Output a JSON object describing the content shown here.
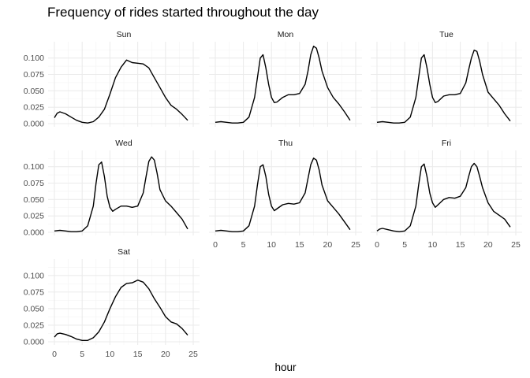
{
  "chart_data": {
    "type": "line",
    "title": "Frequency of rides started throughout the day",
    "xlabel": "hour",
    "ylabel": "",
    "xlim": [
      0,
      24
    ],
    "ylim": [
      0,
      0.12
    ],
    "x_ticks": [
      0,
      5,
      10,
      15,
      20,
      25
    ],
    "y_ticks": [
      "0.000",
      "0.025",
      "0.050",
      "0.075",
      "0.100"
    ],
    "grid": true,
    "facets": [
      {
        "name": "Sun",
        "points": [
          [
            0,
            0.009
          ],
          [
            0.5,
            0.016
          ],
          [
            1,
            0.018
          ],
          [
            2,
            0.015
          ],
          [
            3,
            0.01
          ],
          [
            4,
            0.005
          ],
          [
            5,
            0.002
          ],
          [
            6,
            0.001
          ],
          [
            7,
            0.003
          ],
          [
            8,
            0.01
          ],
          [
            9,
            0.022
          ],
          [
            10,
            0.045
          ],
          [
            11,
            0.07
          ],
          [
            12,
            0.086
          ],
          [
            13,
            0.097
          ],
          [
            14,
            0.093
          ],
          [
            15,
            0.092
          ],
          [
            16,
            0.091
          ],
          [
            17,
            0.085
          ],
          [
            18,
            0.07
          ],
          [
            19,
            0.055
          ],
          [
            20,
            0.04
          ],
          [
            21,
            0.028
          ],
          [
            22,
            0.022
          ],
          [
            23,
            0.014
          ],
          [
            24,
            0.005
          ]
        ]
      },
      {
        "name": "Mon",
        "points": [
          [
            0,
            0.002
          ],
          [
            1,
            0.003
          ],
          [
            2,
            0.002
          ],
          [
            3,
            0.001
          ],
          [
            4,
            0.001
          ],
          [
            5,
            0.002
          ],
          [
            6,
            0.01
          ],
          [
            7,
            0.04
          ],
          [
            7.5,
            0.07
          ],
          [
            8,
            0.1
          ],
          [
            8.5,
            0.105
          ],
          [
            9,
            0.085
          ],
          [
            9.5,
            0.06
          ],
          [
            10,
            0.04
          ],
          [
            10.5,
            0.032
          ],
          [
            11,
            0.033
          ],
          [
            12,
            0.04
          ],
          [
            13,
            0.044
          ],
          [
            14,
            0.044
          ],
          [
            15,
            0.046
          ],
          [
            16,
            0.06
          ],
          [
            16.5,
            0.08
          ],
          [
            17,
            0.105
          ],
          [
            17.5,
            0.118
          ],
          [
            18,
            0.115
          ],
          [
            18.5,
            0.1
          ],
          [
            19,
            0.08
          ],
          [
            20,
            0.055
          ],
          [
            21,
            0.04
          ],
          [
            22,
            0.03
          ],
          [
            23,
            0.018
          ],
          [
            24,
            0.005
          ]
        ]
      },
      {
        "name": "Tue",
        "points": [
          [
            0,
            0.002
          ],
          [
            1,
            0.003
          ],
          [
            2,
            0.002
          ],
          [
            3,
            0.001
          ],
          [
            4,
            0.001
          ],
          [
            5,
            0.002
          ],
          [
            6,
            0.01
          ],
          [
            7,
            0.04
          ],
          [
            7.5,
            0.07
          ],
          [
            8,
            0.1
          ],
          [
            8.5,
            0.105
          ],
          [
            9,
            0.085
          ],
          [
            9.5,
            0.06
          ],
          [
            10,
            0.04
          ],
          [
            10.5,
            0.032
          ],
          [
            11,
            0.034
          ],
          [
            12,
            0.042
          ],
          [
            13,
            0.044
          ],
          [
            14,
            0.044
          ],
          [
            15,
            0.046
          ],
          [
            16,
            0.062
          ],
          [
            16.5,
            0.082
          ],
          [
            17,
            0.1
          ],
          [
            17.5,
            0.112
          ],
          [
            18,
            0.11
          ],
          [
            18.5,
            0.095
          ],
          [
            19,
            0.075
          ],
          [
            20,
            0.048
          ],
          [
            21,
            0.038
          ],
          [
            22,
            0.028
          ],
          [
            23,
            0.015
          ],
          [
            24,
            0.004
          ]
        ]
      },
      {
        "name": "Wed",
        "points": [
          [
            0,
            0.002
          ],
          [
            1,
            0.003
          ],
          [
            2,
            0.002
          ],
          [
            3,
            0.001
          ],
          [
            4,
            0.001
          ],
          [
            5,
            0.002
          ],
          [
            6,
            0.01
          ],
          [
            7,
            0.04
          ],
          [
            7.5,
            0.075
          ],
          [
            8,
            0.103
          ],
          [
            8.5,
            0.107
          ],
          [
            9,
            0.085
          ],
          [
            9.5,
            0.055
          ],
          [
            10,
            0.038
          ],
          [
            10.5,
            0.032
          ],
          [
            11,
            0.035
          ],
          [
            12,
            0.04
          ],
          [
            13,
            0.04
          ],
          [
            14,
            0.038
          ],
          [
            15,
            0.04
          ],
          [
            16,
            0.06
          ],
          [
            16.5,
            0.085
          ],
          [
            17,
            0.108
          ],
          [
            17.5,
            0.115
          ],
          [
            18,
            0.11
          ],
          [
            18.5,
            0.09
          ],
          [
            19,
            0.065
          ],
          [
            20,
            0.048
          ],
          [
            21,
            0.04
          ],
          [
            22,
            0.03
          ],
          [
            23,
            0.02
          ],
          [
            24,
            0.005
          ]
        ]
      },
      {
        "name": "Thu",
        "points": [
          [
            0,
            0.002
          ],
          [
            1,
            0.003
          ],
          [
            2,
            0.002
          ],
          [
            3,
            0.001
          ],
          [
            4,
            0.001
          ],
          [
            5,
            0.002
          ],
          [
            6,
            0.01
          ],
          [
            7,
            0.04
          ],
          [
            7.5,
            0.072
          ],
          [
            8,
            0.1
          ],
          [
            8.5,
            0.103
          ],
          [
            9,
            0.085
          ],
          [
            9.5,
            0.058
          ],
          [
            10,
            0.04
          ],
          [
            10.5,
            0.033
          ],
          [
            11,
            0.036
          ],
          [
            12,
            0.042
          ],
          [
            13,
            0.044
          ],
          [
            14,
            0.043
          ],
          [
            15,
            0.045
          ],
          [
            16,
            0.06
          ],
          [
            16.5,
            0.082
          ],
          [
            17,
            0.103
          ],
          [
            17.5,
            0.113
          ],
          [
            18,
            0.11
          ],
          [
            18.5,
            0.095
          ],
          [
            19,
            0.072
          ],
          [
            20,
            0.048
          ],
          [
            21,
            0.038
          ],
          [
            22,
            0.028
          ],
          [
            23,
            0.016
          ],
          [
            24,
            0.004
          ]
        ]
      },
      {
        "name": "Fri",
        "points": [
          [
            0,
            0.002
          ],
          [
            0.5,
            0.005
          ],
          [
            1,
            0.006
          ],
          [
            2,
            0.004
          ],
          [
            3,
            0.002
          ],
          [
            4,
            0.001
          ],
          [
            5,
            0.002
          ],
          [
            6,
            0.01
          ],
          [
            7,
            0.04
          ],
          [
            7.5,
            0.072
          ],
          [
            8,
            0.1
          ],
          [
            8.5,
            0.104
          ],
          [
            9,
            0.085
          ],
          [
            9.5,
            0.06
          ],
          [
            10,
            0.045
          ],
          [
            10.5,
            0.038
          ],
          [
            11,
            0.042
          ],
          [
            12,
            0.05
          ],
          [
            13,
            0.053
          ],
          [
            14,
            0.052
          ],
          [
            15,
            0.055
          ],
          [
            16,
            0.068
          ],
          [
            16.5,
            0.085
          ],
          [
            17,
            0.1
          ],
          [
            17.5,
            0.105
          ],
          [
            18,
            0.1
          ],
          [
            18.5,
            0.085
          ],
          [
            19,
            0.068
          ],
          [
            20,
            0.045
          ],
          [
            21,
            0.032
          ],
          [
            22,
            0.026
          ],
          [
            23,
            0.02
          ],
          [
            24,
            0.008
          ]
        ]
      },
      {
        "name": "Sat",
        "points": [
          [
            0,
            0.007
          ],
          [
            0.5,
            0.012
          ],
          [
            1,
            0.013
          ],
          [
            2,
            0.011
          ],
          [
            3,
            0.008
          ],
          [
            4,
            0.004
          ],
          [
            5,
            0.002
          ],
          [
            6,
            0.002
          ],
          [
            7,
            0.006
          ],
          [
            8,
            0.015
          ],
          [
            9,
            0.03
          ],
          [
            10,
            0.05
          ],
          [
            11,
            0.068
          ],
          [
            12,
            0.082
          ],
          [
            13,
            0.088
          ],
          [
            14,
            0.089
          ],
          [
            15,
            0.093
          ],
          [
            16,
            0.09
          ],
          [
            17,
            0.08
          ],
          [
            18,
            0.065
          ],
          [
            19,
            0.052
          ],
          [
            20,
            0.038
          ],
          [
            21,
            0.03
          ],
          [
            22,
            0.027
          ],
          [
            23,
            0.02
          ],
          [
            24,
            0.01
          ]
        ]
      }
    ]
  }
}
